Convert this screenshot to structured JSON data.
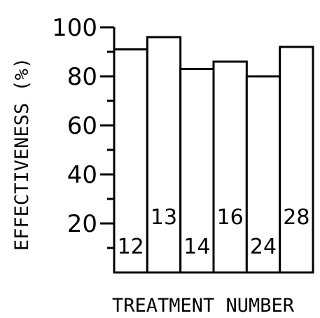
{
  "chart_data": {
    "type": "bar",
    "categories": [
      "12",
      "13",
      "14",
      "16",
      "24",
      "28"
    ],
    "values": [
      91,
      96,
      83,
      86,
      80,
      92
    ],
    "title": "",
    "xlabel": "TREATMENT NUMBER",
    "ylabel": "EFFECTIVENESS (%)",
    "ylim": [
      0,
      100
    ],
    "yticks": [
      "20",
      "40",
      "60",
      "80",
      "100"
    ],
    "grid": false,
    "legend": "none",
    "bar_fill": "#ffffff",
    "stroke": "#000000"
  }
}
